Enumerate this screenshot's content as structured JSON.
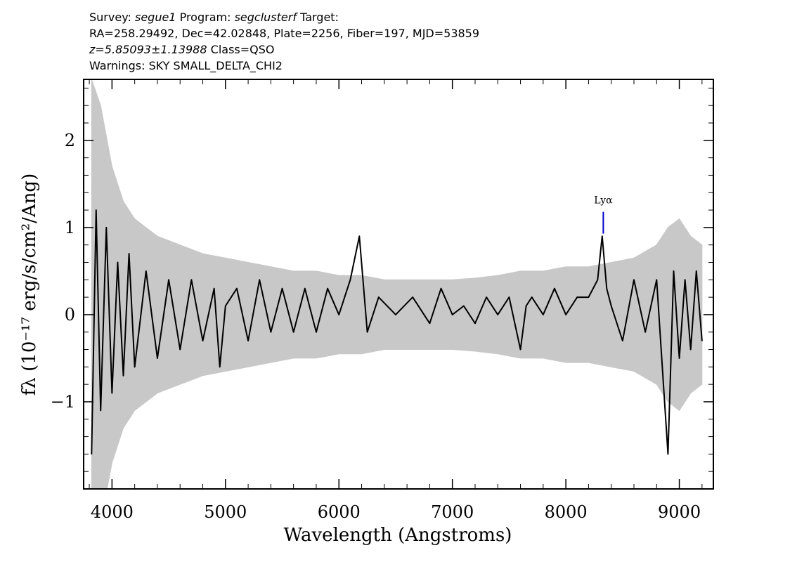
{
  "header": {
    "survey_label": "Survey:",
    "survey": "segue1",
    "program_label": "Program:",
    "program": "segclusterf",
    "target_label": "Target:",
    "line2": "RA=258.29492, Dec=42.02848, Plate=2256, Fiber=197, MJD=53859",
    "z_text": "z=5.85093±1.13988",
    "class_text": "Class=QSO",
    "warnings": "Warnings: SKY SMALL_DELTA_CHI2"
  },
  "chart_data": {
    "type": "line",
    "title": "",
    "xlabel": "Wavelength (Angstroms)",
    "ylabel": "fλ (10⁻¹⁷ erg/s/cm²/Ang)",
    "xlim": [
      3750,
      9300
    ],
    "ylim": [
      -2.0,
      2.7
    ],
    "xticks": [
      4000,
      5000,
      6000,
      7000,
      8000,
      9000
    ],
    "yticks": [
      -1,
      0,
      1,
      2
    ],
    "ytick_labels": [
      "−1",
      "0",
      "1",
      "2"
    ],
    "grid": false,
    "line_marker": {
      "label": "Lyα",
      "x": 8330,
      "y_range": [
        0.93,
        1.18
      ],
      "color": "#0000cc"
    },
    "series": [
      {
        "role": "flux",
        "color": "#000000",
        "x": [
          3820,
          3860,
          3900,
          3950,
          4000,
          4050,
          4100,
          4150,
          4200,
          4300,
          4400,
          4500,
          4600,
          4700,
          4800,
          4900,
          4950,
          5000,
          5100,
          5200,
          5300,
          5400,
          5500,
          5600,
          5700,
          5800,
          5900,
          6000,
          6100,
          6180,
          6250,
          6350,
          6500,
          6650,
          6800,
          6900,
          7000,
          7100,
          7200,
          7300,
          7400,
          7500,
          7600,
          7650,
          7700,
          7800,
          7900,
          8000,
          8100,
          8200,
          8280,
          8320,
          8360,
          8400,
          8500,
          8600,
          8700,
          8800,
          8900,
          8950,
          9000,
          9050,
          9100,
          9150,
          9200
        ],
        "y": [
          -1.6,
          1.2,
          -1.1,
          1.0,
          -0.9,
          0.6,
          -0.7,
          0.7,
          -0.6,
          0.5,
          -0.5,
          0.4,
          -0.4,
          0.4,
          -0.3,
          0.3,
          -0.6,
          0.1,
          0.3,
          -0.3,
          0.4,
          -0.2,
          0.3,
          -0.2,
          0.3,
          -0.2,
          0.3,
          0.0,
          0.4,
          0.9,
          -0.2,
          0.2,
          0.0,
          0.2,
          -0.1,
          0.3,
          0.0,
          0.1,
          -0.1,
          0.2,
          0.0,
          0.2,
          -0.4,
          0.1,
          0.2,
          0.0,
          0.3,
          0.0,
          0.2,
          0.2,
          0.4,
          0.9,
          0.3,
          0.1,
          -0.3,
          0.4,
          -0.2,
          0.4,
          -1.6,
          0.5,
          -0.5,
          0.4,
          -0.4,
          0.5,
          -0.3
        ]
      },
      {
        "role": "error",
        "color": "#c8c8c8",
        "x": [
          3820,
          3900,
          4000,
          4100,
          4200,
          4400,
          4600,
          4800,
          5000,
          5200,
          5400,
          5600,
          5800,
          6000,
          6200,
          6400,
          6600,
          6800,
          7000,
          7200,
          7400,
          7600,
          7800,
          8000,
          8200,
          8400,
          8600,
          8800,
          8900,
          9000,
          9100,
          9200
        ],
        "y": [
          2.7,
          2.4,
          1.7,
          1.3,
          1.1,
          0.9,
          0.8,
          0.7,
          0.65,
          0.6,
          0.55,
          0.5,
          0.5,
          0.45,
          0.45,
          0.4,
          0.4,
          0.4,
          0.4,
          0.42,
          0.45,
          0.5,
          0.5,
          0.55,
          0.55,
          0.6,
          0.65,
          0.8,
          1.0,
          1.1,
          0.9,
          0.8
        ]
      }
    ]
  }
}
